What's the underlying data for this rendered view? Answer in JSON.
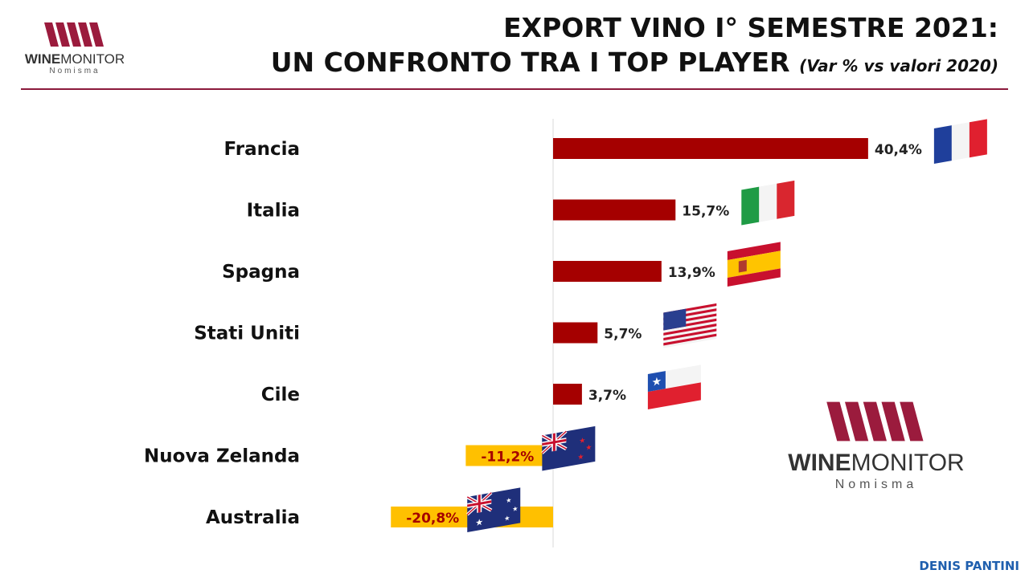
{
  "header": {
    "logo_word_bold": "WINE",
    "logo_word_rest": "MONITOR",
    "logo_sub": "Nomisma",
    "title_line1": "EXPORT VINO I° SEMESTRE 2021:",
    "title_line2": "UN CONFRONTO TRA I TOP PLAYER",
    "title_sub": "(Var % vs valori 2020)"
  },
  "footer": {
    "author": "DENIS PANTINI"
  },
  "colors": {
    "positive": "#a50000",
    "negative": "#ffc000",
    "accent": "#8b1a3c",
    "footer": "#1f5fae"
  },
  "icons": [
    "france-flag-icon",
    "italy-flag-icon",
    "spain-flag-icon",
    "usa-flag-icon",
    "chile-flag-icon",
    "new-zealand-flag-icon",
    "australia-flag-icon"
  ],
  "chart_data": {
    "type": "bar",
    "orientation": "horizontal",
    "title": "EXPORT VINO I° SEMESTRE 2021: UN CONFRONTO TRA I TOP PLAYER",
    "subtitle": "(Var % vs valori 2020)",
    "categories": [
      "Francia",
      "Italia",
      "Spagna",
      "Stati Uniti",
      "Cile",
      "Nuova Zelanda",
      "Australia"
    ],
    "values": [
      40.4,
      15.7,
      13.9,
      5.7,
      3.7,
      -11.2,
      -20.8
    ],
    "value_labels": [
      "40,4%",
      "15,7%",
      "13,9%",
      "5,7%",
      "3,7%",
      "-11,2%",
      "-20,8%"
    ],
    "xlim": [
      -21,
      41
    ],
    "grid": false,
    "legend": "none"
  }
}
